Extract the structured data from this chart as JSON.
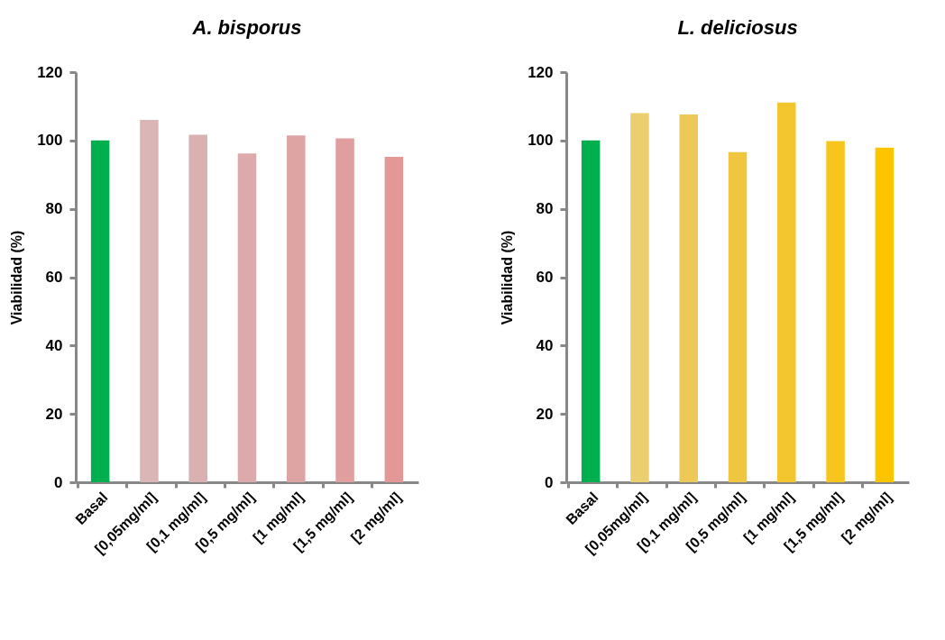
{
  "chart_data": [
    {
      "type": "bar",
      "title": "A. bisporus",
      "ylabel": "Viabilidad (%)",
      "categories": [
        "Basal",
        "[0,05mg/ml]",
        "[0,1 mg/ml]",
        "[0,5 mg/ml]",
        "[1 mg/ml]",
        "[1,5 mg/ml]",
        "[2 mg/ml]"
      ],
      "values": [
        100,
        106,
        101.7,
        96.2,
        101.5,
        100.6,
        95.2
      ],
      "colors": [
        "#00b050",
        "#dbb6b6",
        "#dab1b1",
        "#dcaaaa",
        "#dea3a3",
        "#e09e9e",
        "#e39797"
      ],
      "ylim": [
        0,
        120
      ],
      "yticks": [
        0,
        20,
        40,
        60,
        80,
        100,
        120
      ],
      "grid": false
    },
    {
      "type": "bar",
      "title": "L. deliciosus",
      "ylabel": "Viabilidad (%)",
      "categories": [
        "Basal",
        "[0,05mg/ml]",
        "[0,1 mg/ml]",
        "[0,5 mg/ml]",
        "[1 mg/ml]",
        "[1,5 mg/ml]",
        "[2 mg/ml]"
      ],
      "values": [
        100,
        108,
        107.6,
        96.6,
        111.1,
        99.8,
        97.9
      ],
      "colors": [
        "#00b050",
        "#ebcf6e",
        "#edca58",
        "#f0c540",
        "#f3c52f",
        "#f8c51e",
        "#ffc400"
      ],
      "ylim": [
        0,
        120
      ],
      "yticks": [
        0,
        20,
        40,
        60,
        80,
        100,
        120
      ],
      "grid": false
    }
  ]
}
